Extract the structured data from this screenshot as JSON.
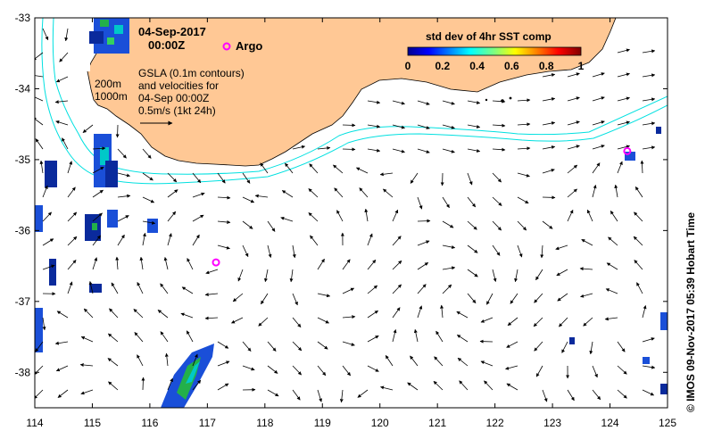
{
  "map": {
    "date_label": "04-Sep-2017",
    "time_label": "00:00Z",
    "argo_label": "Argo",
    "depth_200": "200m",
    "depth_1000": "1000m",
    "gsla_lines": [
      "GSLA (0.1m contours)",
      "and velocities for",
      "04-Sep 00:00Z",
      "0.5m/s (1kt 24h)"
    ],
    "credit": "© IMOS 09-Nov-2017 05:39 Hobart Time",
    "colorbar": {
      "title": "std dev of 4hr SST comp",
      "ticks": [
        "0",
        "0.2",
        "0.4",
        "0.6",
        "0.8",
        "1"
      ]
    },
    "x_ticks": [
      "114",
      "115",
      "116",
      "117",
      "118",
      "119",
      "120",
      "121",
      "122",
      "123",
      "124",
      "125"
    ],
    "y_ticks": [
      "-33",
      "-34",
      "-35",
      "-36",
      "-37",
      "-38"
    ],
    "colors": {
      "land": "#FFC895",
      "isobath": "#00E0E0",
      "argo": "#FF00FF"
    },
    "argo_floats": [
      {
        "lon": 117.15,
        "lat": -36.45
      },
      {
        "lon": 124.3,
        "lat": -34.88
      }
    ]
  }
}
